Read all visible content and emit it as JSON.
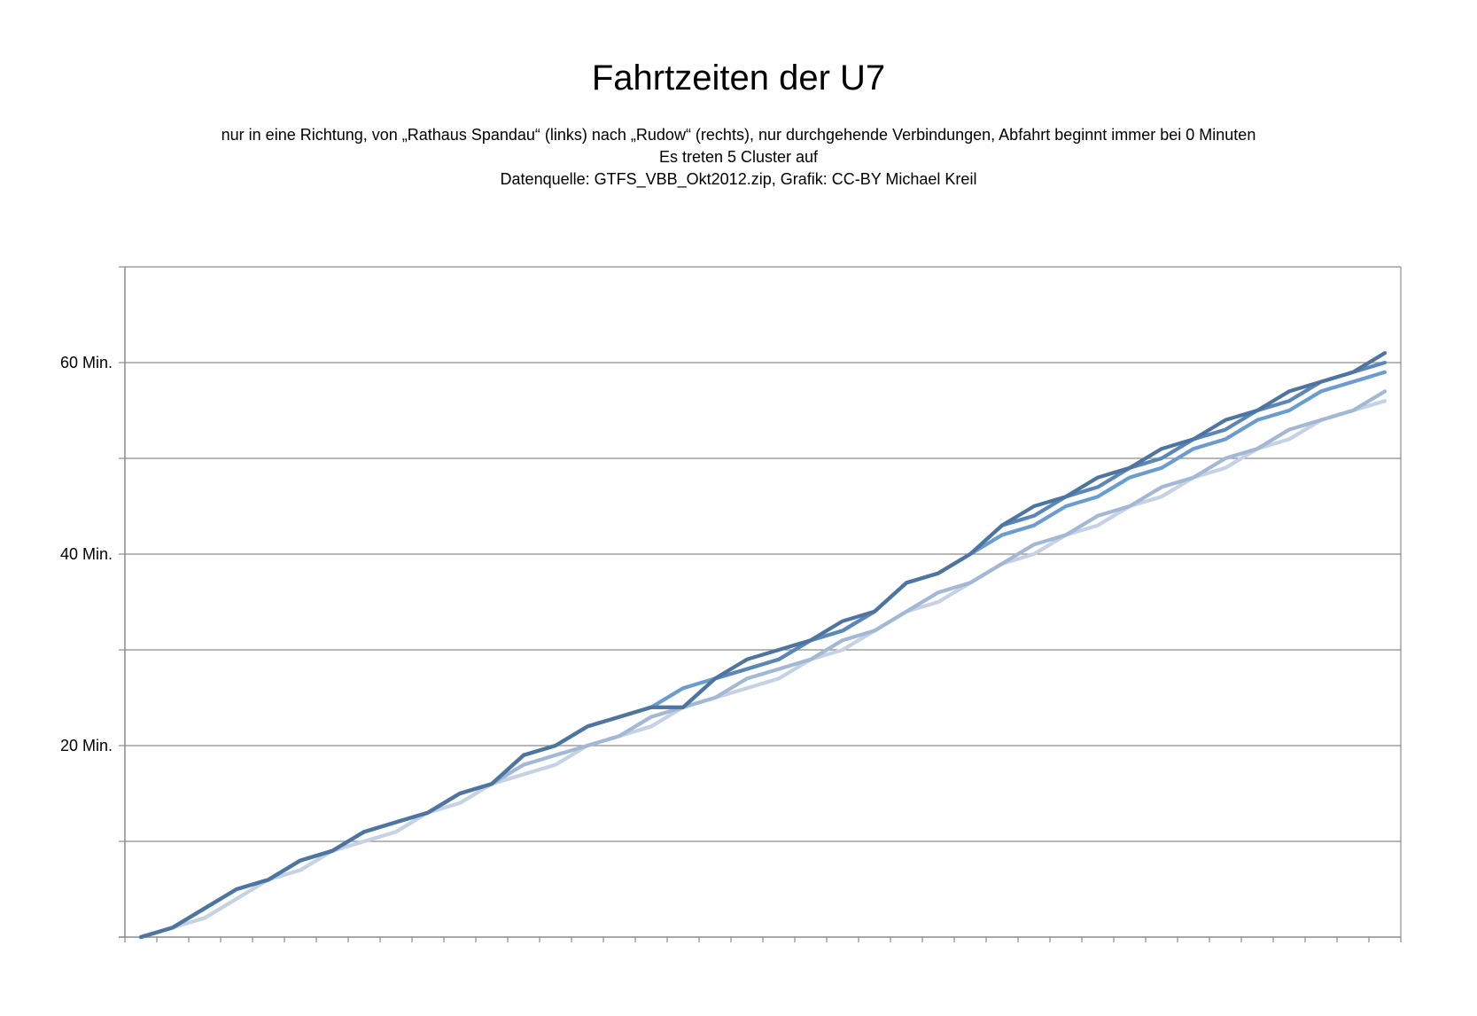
{
  "header": {
    "title": "Fahrtzeiten der U7",
    "subtitle_lines": [
      "nur in eine Richtung, von „Rathaus Spandau“ (links) nach „Rudow“ (rechts), nur durchgehende Verbindungen, Abfahrt beginnt immer bei 0 Minuten",
      "Es treten 5 Cluster auf",
      "Datenquelle: GTFS_VBB_Okt2012.zip, Grafik: CC-BY Michael Kreil"
    ]
  },
  "chart_data": {
    "type": "line",
    "title": "Fahrtzeiten der U7",
    "xlabel": "",
    "ylabel": "",
    "ylim": [
      0,
      70
    ],
    "y_major_ticks": [
      0,
      10,
      20,
      30,
      40,
      50,
      60,
      70
    ],
    "y_tick_labels": [
      {
        "value": 20,
        "label": "20 Min."
      },
      {
        "value": 40,
        "label": "40 Min."
      },
      {
        "value": 60,
        "label": "60 Min."
      }
    ],
    "x_categories_count": 40,
    "grid": true,
    "legend": "none",
    "series": [
      {
        "color": "#4e74a0",
        "values": [
          0,
          1,
          3,
          5,
          6,
          8,
          9,
          11,
          12,
          13,
          15,
          16,
          19,
          20,
          22,
          23,
          24,
          24,
          27,
          29,
          30,
          31,
          33,
          34,
          37,
          38,
          40,
          43,
          45,
          46,
          48,
          49,
          51,
          52,
          54,
          55,
          57,
          58,
          59,
          61
        ]
      },
      {
        "color": "#5b86b8",
        "values": [
          0,
          1,
          3,
          5,
          6,
          8,
          9,
          11,
          12,
          13,
          15,
          16,
          19,
          20,
          22,
          23,
          24,
          24,
          27,
          28,
          29,
          31,
          32,
          34,
          37,
          38,
          40,
          43,
          44,
          46,
          47,
          49,
          50,
          52,
          53,
          55,
          56,
          58,
          59,
          60
        ]
      },
      {
        "color": "#6a9ccf",
        "values": [
          0,
          1,
          3,
          5,
          6,
          8,
          9,
          11,
          12,
          13,
          15,
          16,
          19,
          20,
          22,
          23,
          24,
          26,
          27,
          28,
          29,
          31,
          32,
          34,
          37,
          38,
          40,
          42,
          43,
          45,
          46,
          48,
          49,
          51,
          52,
          54,
          55,
          57,
          58,
          59
        ]
      },
      {
        "color": "#a3b8d4",
        "values": [
          0,
          1,
          3,
          5,
          6,
          8,
          9,
          11,
          12,
          13,
          15,
          16,
          18,
          19,
          20,
          21,
          23,
          24,
          25,
          27,
          28,
          29,
          31,
          32,
          34,
          36,
          37,
          39,
          41,
          42,
          44,
          45,
          47,
          48,
          50,
          51,
          53,
          54,
          55,
          57
        ]
      },
      {
        "color": "#c5d1e4",
        "values": [
          0,
          1,
          2,
          4,
          6,
          7,
          9,
          10,
          11,
          13,
          14,
          16,
          17,
          18,
          20,
          21,
          22,
          24,
          25,
          26,
          27,
          29,
          30,
          32,
          34,
          35,
          37,
          39,
          40,
          42,
          43,
          45,
          46,
          48,
          49,
          51,
          52,
          54,
          55,
          56
        ]
      }
    ]
  }
}
